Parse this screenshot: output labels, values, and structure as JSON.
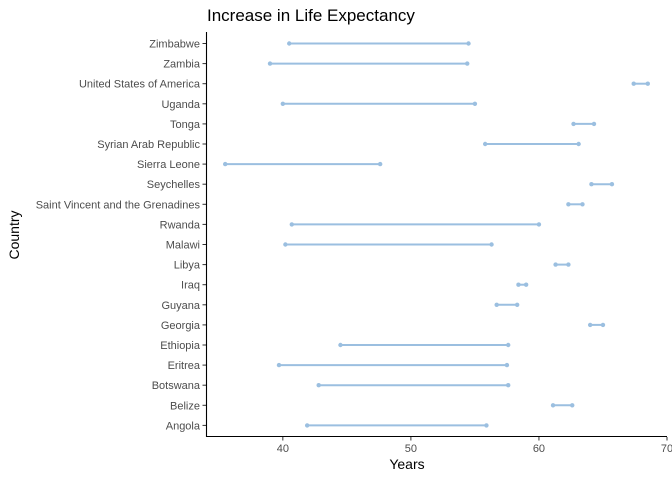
{
  "chart_data": {
    "type": "dumbbell",
    "title": "Increase in Life Expectancy",
    "xlabel": "Years",
    "ylabel": "Country",
    "xlim": [
      34,
      70
    ],
    "xticks": [
      40,
      50,
      60,
      70
    ],
    "grid": false,
    "legend": "none",
    "colors": {
      "series": "#9bbfe0",
      "axis": "#000000",
      "tick_text": "#4d4d4d"
    },
    "categories": [
      "Zimbabwe",
      "Zambia",
      "United States of America",
      "Uganda",
      "Tonga",
      "Syrian Arab Republic",
      "Sierra Leone",
      "Seychelles",
      "Saint Vincent and the Grenadines",
      "Rwanda",
      "Malawi",
      "Libya",
      "Iraq",
      "Guyana",
      "Georgia",
      "Ethiopia",
      "Eritrea",
      "Botswana",
      "Belize",
      "Angola"
    ],
    "start": [
      40.5,
      39.0,
      67.4,
      40.0,
      62.7,
      55.8,
      35.5,
      64.1,
      62.3,
      40.7,
      40.2,
      61.3,
      58.4,
      56.7,
      64.0,
      44.5,
      39.7,
      42.8,
      61.1,
      41.9
    ],
    "end": [
      54.5,
      54.4,
      68.5,
      55.0,
      64.3,
      63.1,
      47.6,
      65.7,
      63.4,
      60.0,
      56.3,
      62.3,
      59.0,
      58.3,
      65.0,
      57.6,
      57.5,
      57.6,
      62.6,
      55.9
    ]
  }
}
